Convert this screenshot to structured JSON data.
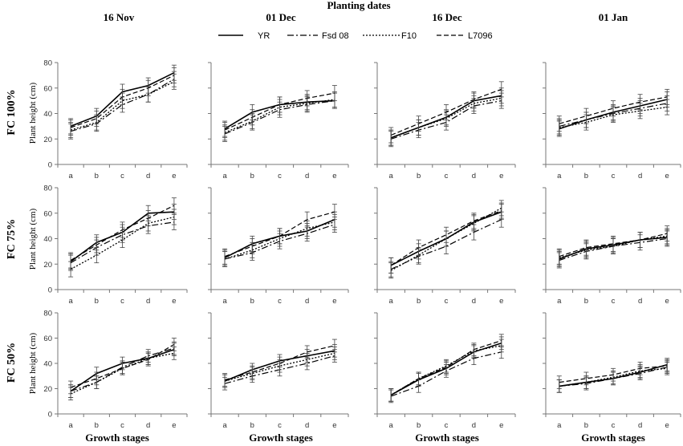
{
  "chart_data": {
    "type": "line",
    "title": "Planting dates",
    "xlabel": "Growth stages",
    "ylabel": "Plant height (cm)",
    "ylim": [
      0,
      80
    ],
    "yticks": [
      "0",
      "20",
      "40",
      "60",
      "80"
    ],
    "categories": [
      "a",
      "b",
      "c",
      "d",
      "e"
    ],
    "columns": [
      "16 Nov",
      "01 Dec",
      "16 Dec",
      "01 Jan"
    ],
    "rows": [
      "FC 100%",
      "FC 75%",
      "FC 50%"
    ],
    "legend": [
      "YR",
      "Fsd 08",
      "F10",
      "L7096"
    ],
    "legend_position": "top-center",
    "line_styles": {
      "YR": "solid",
      "Fsd 08": "dash-dot",
      "F10": "dotted",
      "L7096": "dashed"
    },
    "panels": [
      {
        "row": "FC 100%",
        "column": "16 Nov",
        "series": [
          {
            "name": "YR",
            "values": [
              30,
              38,
              57,
              62,
              72
            ]
          },
          {
            "name": "Fsd 08",
            "values": [
              26,
              32,
              47,
              55,
              67
            ]
          },
          {
            "name": "F10",
            "values": [
              27,
              33,
              50,
              55,
              65
            ]
          },
          {
            "name": "L7096",
            "values": [
              29,
              36,
              53,
              60,
              70
            ]
          }
        ]
      },
      {
        "row": "FC 100%",
        "column": "01 Dec",
        "series": [
          {
            "name": "YR",
            "values": [
              28,
              41,
              47,
              49,
              50
            ]
          },
          {
            "name": "Fsd 08",
            "values": [
              24,
              33,
              43,
              47,
              50
            ]
          },
          {
            "name": "F10",
            "values": [
              25,
              34,
              45,
              48,
              51
            ]
          },
          {
            "name": "L7096",
            "values": [
              27,
              37,
              47,
              52,
              56
            ]
          }
        ]
      },
      {
        "row": "FC 100%",
        "column": "16 Dec",
        "series": [
          {
            "name": "YR",
            "values": [
              21,
              29,
              37,
              50,
              54
            ]
          },
          {
            "name": "Fsd 08",
            "values": [
              20,
              27,
              33,
              46,
              50
            ]
          },
          {
            "name": "F10",
            "values": [
              21,
              29,
              36,
              48,
              52
            ]
          },
          {
            "name": "L7096",
            "values": [
              23,
              32,
              41,
              51,
              59
            ]
          }
        ]
      },
      {
        "row": "FC 100%",
        "column": "01 Jan",
        "series": [
          {
            "name": "YR",
            "values": [
              28,
              35,
              41,
              46,
              51
            ]
          },
          {
            "name": "Fsd 08",
            "values": [
              30,
              35,
              40,
              44,
              48
            ]
          },
          {
            "name": "F10",
            "values": [
              29,
              33,
              39,
              42,
              45
            ]
          },
          {
            "name": "L7096",
            "values": [
              32,
              38,
              44,
              49,
              53
            ]
          }
        ]
      },
      {
        "row": "FC 75%",
        "column": "16 Nov",
        "series": [
          {
            "name": "YR",
            "values": [
              22,
              37,
              45,
              60,
              61
            ]
          },
          {
            "name": "Fsd 08",
            "values": [
              21,
              33,
              43,
              50,
              53
            ]
          },
          {
            "name": "F10",
            "values": [
              16,
              27,
              39,
              52,
              57
            ]
          },
          {
            "name": "L7096",
            "values": [
              23,
              35,
              47,
              56,
              66
            ]
          }
        ]
      },
      {
        "row": "FC 75%",
        "column": "01 Dec",
        "series": [
          {
            "name": "YR",
            "values": [
              25,
              36,
              42,
              46,
              55
            ]
          },
          {
            "name": "Fsd 08",
            "values": [
              24,
              29,
              38,
              44,
              51
            ]
          },
          {
            "name": "F10",
            "values": [
              24,
              31,
              40,
              48,
              53
            ]
          },
          {
            "name": "L7096",
            "values": [
              26,
              34,
              42,
              55,
              61
            ]
          }
        ]
      },
      {
        "row": "FC 75%",
        "column": "16 Dec",
        "series": [
          {
            "name": "YR",
            "values": [
              19,
              30,
              40,
              53,
              61
            ]
          },
          {
            "name": "Fsd 08",
            "values": [
              16,
              26,
              34,
              45,
              55
            ]
          },
          {
            "name": "F10",
            "values": [
              15,
              27,
              40,
              52,
              64
            ]
          },
          {
            "name": "L7096",
            "values": [
              19,
              33,
              43,
              54,
              62
            ]
          }
        ]
      },
      {
        "row": "FC 75%",
        "column": "01 Jan",
        "series": [
          {
            "name": "YR",
            "values": [
              24,
              32,
              35,
              39,
              41
            ]
          },
          {
            "name": "Fsd 08",
            "values": [
              23,
              30,
              34,
              37,
              40
            ]
          },
          {
            "name": "F10",
            "values": [
              25,
              31,
              34,
              39,
              42
            ]
          },
          {
            "name": "L7096",
            "values": [
              26,
              33,
              36,
              39,
              44
            ]
          }
        ]
      },
      {
        "row": "FC 50%",
        "column": "16 Nov",
        "series": [
          {
            "name": "YR",
            "values": [
              18,
              32,
              40,
              44,
              51
            ]
          },
          {
            "name": "Fsd 08",
            "values": [
              18,
              25,
              37,
              46,
              52
            ]
          },
          {
            "name": "F10",
            "values": [
              16,
              25,
              36,
              44,
              48
            ]
          },
          {
            "name": "L7096",
            "values": [
              21,
              28,
              36,
              43,
              55
            ]
          }
        ]
      },
      {
        "row": "FC 50%",
        "column": "01 Dec",
        "series": [
          {
            "name": "YR",
            "values": [
              26,
              35,
              42,
              46,
              50
            ]
          },
          {
            "name": "Fsd 08",
            "values": [
              24,
              30,
              35,
              40,
              46
            ]
          },
          {
            "name": "F10",
            "values": [
              26,
              32,
              38,
              43,
              48
            ]
          },
          {
            "name": "L7096",
            "values": [
              27,
              33,
              40,
              49,
              54
            ]
          }
        ]
      },
      {
        "row": "FC 50%",
        "column": "16 Dec",
        "series": [
          {
            "name": "YR",
            "values": [
              15,
              27,
              36,
              49,
              56
            ]
          },
          {
            "name": "Fsd 08",
            "values": [
              14,
              22,
              34,
              44,
              49
            ]
          },
          {
            "name": "F10",
            "values": [
              15,
              28,
              38,
              50,
              54
            ]
          },
          {
            "name": "L7096",
            "values": [
              15,
              28,
              37,
              51,
              58
            ]
          }
        ]
      },
      {
        "row": "FC 50%",
        "column": "01 Jan",
        "series": [
          {
            "name": "YR",
            "values": [
              22,
              25,
              28,
              33,
              39
            ]
          },
          {
            "name": "Fsd 08",
            "values": [
              22,
              24,
              28,
              32,
              37
            ]
          },
          {
            "name": "F10",
            "values": [
              22,
              25,
              29,
              34,
              36
            ]
          },
          {
            "name": "L7096",
            "values": [
              25,
              28,
              31,
              36,
              38
            ]
          }
        ]
      }
    ]
  }
}
